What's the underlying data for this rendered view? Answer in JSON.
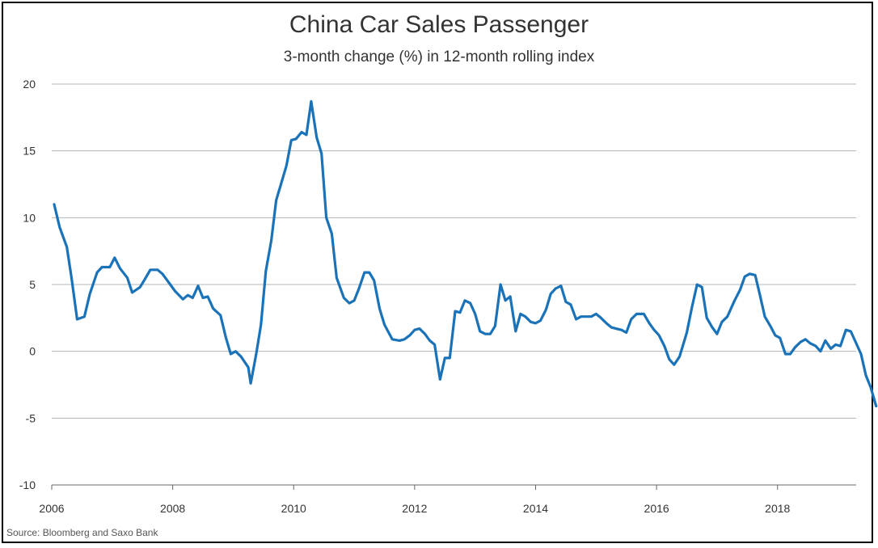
{
  "colors": {
    "line": "#1a72b8",
    "grid": "#b4b4b4",
    "axis": "#666666"
  },
  "chart_data": {
    "type": "line",
    "title": "China Car Sales Passenger",
    "subtitle": "3-month change (%) in 12-month rolling index",
    "source": "Source: Bloomberg and Saxo Bank",
    "xlim": [
      2006,
      2019.3
    ],
    "ylim": [
      -10,
      20
    ],
    "x_ticks": [
      "2006",
      "2008",
      "2010",
      "2012",
      "2014",
      "2016",
      "2018"
    ],
    "y_ticks": [
      "20",
      "15",
      "10",
      "5",
      "0",
      "-5",
      "-10"
    ],
    "grid": true,
    "legend": "none",
    "series": [
      {
        "points": [
          [
            2006.04,
            11.0
          ],
          [
            2006.13,
            9.3
          ],
          [
            2006.25,
            7.8
          ],
          [
            2006.33,
            5.4
          ],
          [
            2006.42,
            2.4
          ],
          [
            2006.54,
            2.6
          ],
          [
            2006.63,
            4.3
          ],
          [
            2006.75,
            5.9
          ],
          [
            2006.83,
            6.3
          ],
          [
            2006.96,
            6.3
          ],
          [
            2007.04,
            7.0
          ],
          [
            2007.13,
            6.2
          ],
          [
            2007.25,
            5.5
          ],
          [
            2007.33,
            4.4
          ],
          [
            2007.46,
            4.8
          ],
          [
            2007.54,
            5.4
          ],
          [
            2007.63,
            6.1
          ],
          [
            2007.75,
            6.1
          ],
          [
            2007.83,
            5.8
          ],
          [
            2007.96,
            5.0
          ],
          [
            2008.04,
            4.5
          ],
          [
            2008.17,
            3.9
          ],
          [
            2008.25,
            4.2
          ],
          [
            2008.33,
            4.0
          ],
          [
            2008.42,
            4.9
          ],
          [
            2008.5,
            4.0
          ],
          [
            2008.58,
            4.1
          ],
          [
            2008.67,
            3.2
          ],
          [
            2008.79,
            2.7
          ],
          [
            2008.88,
            1.0
          ],
          [
            2008.96,
            -0.2
          ],
          [
            2009.04,
            0.0
          ],
          [
            2009.13,
            -0.4
          ],
          [
            2009.25,
            -1.2
          ],
          [
            2009.29,
            -2.4
          ],
          [
            2009.38,
            -0.2
          ],
          [
            2009.46,
            2.0
          ],
          [
            2009.54,
            6.0
          ],
          [
            2009.63,
            8.3
          ],
          [
            2009.71,
            11.3
          ],
          [
            2009.79,
            12.5
          ],
          [
            2009.88,
            13.9
          ],
          [
            2009.96,
            15.8
          ],
          [
            2010.04,
            15.9
          ],
          [
            2010.13,
            16.4
          ],
          [
            2010.21,
            16.2
          ],
          [
            2010.29,
            18.7
          ],
          [
            2010.38,
            16.0
          ],
          [
            2010.46,
            14.8
          ],
          [
            2010.54,
            10.0
          ],
          [
            2010.63,
            8.8
          ],
          [
            2010.71,
            5.5
          ],
          [
            2010.83,
            4.0
          ],
          [
            2010.92,
            3.6
          ],
          [
            2011.0,
            3.8
          ],
          [
            2011.08,
            4.7
          ],
          [
            2011.17,
            5.9
          ],
          [
            2011.25,
            5.9
          ],
          [
            2011.33,
            5.3
          ],
          [
            2011.42,
            3.2
          ],
          [
            2011.5,
            2.0
          ],
          [
            2011.63,
            0.9
          ],
          [
            2011.75,
            0.8
          ],
          [
            2011.83,
            0.9
          ],
          [
            2011.92,
            1.2
          ],
          [
            2012.0,
            1.6
          ],
          [
            2012.08,
            1.7
          ],
          [
            2012.17,
            1.3
          ],
          [
            2012.25,
            0.8
          ],
          [
            2012.33,
            0.5
          ],
          [
            2012.42,
            -2.1
          ],
          [
            2012.5,
            -0.5
          ],
          [
            2012.58,
            -0.5
          ],
          [
            2012.67,
            3.0
          ],
          [
            2012.75,
            2.9
          ],
          [
            2012.83,
            3.8
          ],
          [
            2012.92,
            3.6
          ],
          [
            2013.0,
            2.8
          ],
          [
            2013.08,
            1.5
          ],
          [
            2013.17,
            1.3
          ],
          [
            2013.25,
            1.3
          ],
          [
            2013.33,
            1.9
          ],
          [
            2013.42,
            5.0
          ],
          [
            2013.5,
            3.8
          ],
          [
            2013.58,
            4.1
          ],
          [
            2013.67,
            1.5
          ],
          [
            2013.75,
            2.8
          ],
          [
            2013.83,
            2.6
          ],
          [
            2013.92,
            2.2
          ],
          [
            2014.0,
            2.1
          ],
          [
            2014.08,
            2.3
          ],
          [
            2014.17,
            3.1
          ],
          [
            2014.25,
            4.3
          ],
          [
            2014.33,
            4.7
          ],
          [
            2014.42,
            4.9
          ],
          [
            2014.5,
            3.7
          ],
          [
            2014.58,
            3.5
          ],
          [
            2014.67,
            2.4
          ],
          [
            2014.75,
            2.6
          ],
          [
            2014.83,
            2.6
          ],
          [
            2014.92,
            2.6
          ],
          [
            2015.0,
            2.8
          ],
          [
            2015.08,
            2.5
          ],
          [
            2015.17,
            2.1
          ],
          [
            2015.25,
            1.8
          ],
          [
            2015.33,
            1.7
          ],
          [
            2015.42,
            1.6
          ],
          [
            2015.5,
            1.4
          ],
          [
            2015.58,
            2.4
          ],
          [
            2015.67,
            2.8
          ],
          [
            2015.79,
            2.8
          ],
          [
            2015.88,
            2.1
          ],
          [
            2015.96,
            1.6
          ],
          [
            2016.04,
            1.2
          ],
          [
            2016.13,
            0.4
          ],
          [
            2016.21,
            -0.6
          ],
          [
            2016.29,
            -1.0
          ],
          [
            2016.38,
            -0.4
          ],
          [
            2016.5,
            1.4
          ],
          [
            2016.58,
            3.2
          ],
          [
            2016.67,
            5.0
          ],
          [
            2016.75,
            4.8
          ],
          [
            2016.83,
            2.5
          ],
          [
            2016.92,
            1.8
          ],
          [
            2017.0,
            1.3
          ],
          [
            2017.08,
            2.2
          ],
          [
            2017.17,
            2.6
          ],
          [
            2017.29,
            3.8
          ],
          [
            2017.38,
            4.6
          ],
          [
            2017.46,
            5.6
          ],
          [
            2017.54,
            5.8
          ],
          [
            2017.63,
            5.7
          ],
          [
            2017.71,
            4.2
          ],
          [
            2017.79,
            2.6
          ],
          [
            2017.88,
            1.9
          ],
          [
            2017.96,
            1.2
          ],
          [
            2018.04,
            1.0
          ],
          [
            2018.13,
            -0.2
          ],
          [
            2018.21,
            -0.2
          ],
          [
            2018.29,
            0.3
          ],
          [
            2018.38,
            0.7
          ],
          [
            2018.46,
            0.9
          ],
          [
            2018.54,
            0.6
          ],
          [
            2018.63,
            0.4
          ],
          [
            2018.71,
            0.0
          ],
          [
            2018.79,
            0.8
          ],
          [
            2018.88,
            0.2
          ],
          [
            2018.96,
            0.5
          ],
          [
            2019.04,
            0.4
          ],
          [
            2019.13,
            1.6
          ],
          [
            2019.21,
            1.5
          ],
          [
            2019.29,
            0.7
          ],
          [
            2019.38,
            -0.2
          ],
          [
            2019.46,
            -1.8
          ],
          [
            2019.54,
            -2.7
          ],
          [
            2019.63,
            -4.1
          ]
        ]
      }
    ]
  }
}
